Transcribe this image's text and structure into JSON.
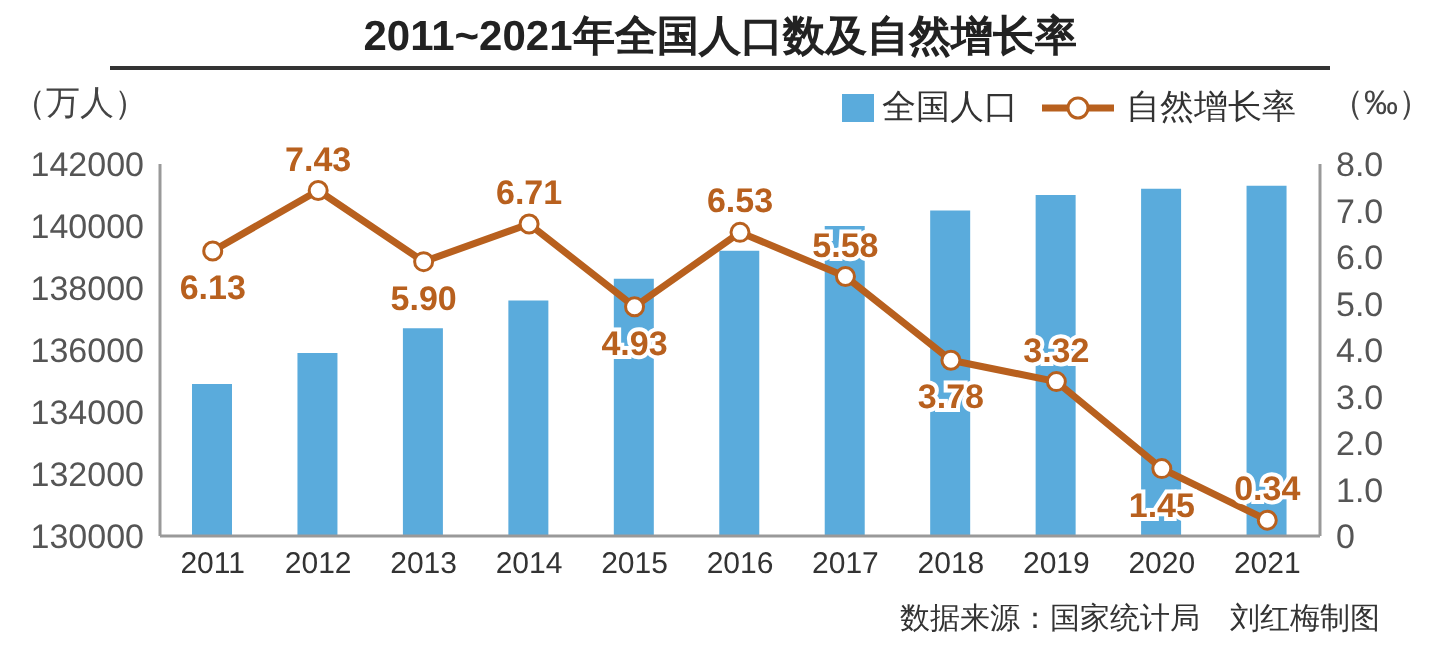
{
  "chart_data": {
    "type": "bar",
    "title": "2011~2021年全国人口数及自然增长率",
    "ylabel": "（万人）",
    "y2label": "（‰）",
    "categories": [
      "2011",
      "2012",
      "2013",
      "2014",
      "2015",
      "2016",
      "2017",
      "2018",
      "2019",
      "2020",
      "2021"
    ],
    "series": [
      {
        "name": "全国人口",
        "color": "#5aabdc",
        "values": [
          134900,
          135900,
          136700,
          137600,
          138300,
          139200,
          140000,
          140500,
          141000,
          141200,
          141300
        ]
      },
      {
        "name": "自然增长率",
        "type": "line",
        "axis": "y2",
        "color": "#b8601e",
        "marker": "circle",
        "data_labels": true,
        "values": [
          6.13,
          7.43,
          5.9,
          6.71,
          4.93,
          6.53,
          5.58,
          3.78,
          3.32,
          1.45,
          0.34
        ],
        "value_labels": [
          "6.13",
          "7.43",
          "5.90",
          "6.71",
          "4.93",
          "6.53",
          "5.58",
          "3.78",
          "3.32",
          "1.45",
          "0.34"
        ]
      }
    ],
    "ylim": [
      130000,
      142000
    ],
    "yticks": [
      130000,
      132000,
      134000,
      136000,
      138000,
      140000,
      142000
    ],
    "y2lim": [
      0,
      8
    ],
    "y2ticks": [
      {
        "value": 0,
        "label": "0"
      },
      {
        "value": 1,
        "label": "1.0"
      },
      {
        "value": 2,
        "label": "2.0"
      },
      {
        "value": 3,
        "label": "3.0"
      },
      {
        "value": 4,
        "label": "4.0"
      },
      {
        "value": 5,
        "label": "5.0"
      },
      {
        "value": 6,
        "label": "6.0"
      },
      {
        "value": 7,
        "label": "7.0"
      },
      {
        "value": 8,
        "label": "8.0"
      }
    ],
    "grid": false,
    "legend": "top right",
    "annotations": [
      "数据来源：国家统计局　刘红梅制图"
    ]
  }
}
